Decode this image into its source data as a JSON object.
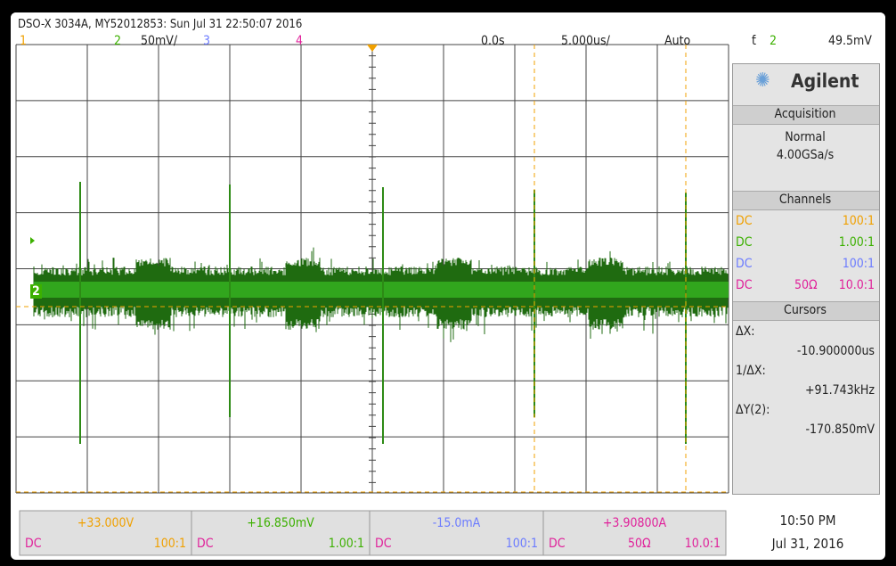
{
  "header": {
    "title": "DSO-X 3034A, MY52012853: Sun Jul 31 22:50:07 2016",
    "channels": [
      {
        "label": "1"
      },
      {
        "label": "2",
        "scale": "50mV/"
      },
      {
        "label": "3"
      },
      {
        "label": "4"
      }
    ],
    "time_offset": "0.0s",
    "time_scale": "5.000us/",
    "trigger_mode": "Auto",
    "trigger_source": "2",
    "trigger_level": "49.5mV"
  },
  "sidebar": {
    "brand": "Agilent",
    "acquisition": {
      "title": "Acquisition",
      "mode": "Normal",
      "rate": "4.00GSa/s"
    },
    "channels": {
      "title": "Channels",
      "rows": [
        {
          "coupling": "DC",
          "probe": "100:1"
        },
        {
          "coupling": "DC",
          "probe": "1.00:1"
        },
        {
          "coupling": "DC",
          "probe": "100:1"
        },
        {
          "coupling": "DC",
          "impedance": "50Ω",
          "probe": "10.0:1"
        }
      ]
    },
    "cursors": {
      "title": "Cursors",
      "items": [
        {
          "label": "ΔX:",
          "value": "-10.900000us"
        },
        {
          "label": "1/ΔX:",
          "value": "+91.743kHz"
        },
        {
          "label": "ΔY(2):",
          "value": "-170.850mV"
        }
      ]
    }
  },
  "footer": {
    "measurements": [
      {
        "value": "+33.000V",
        "coupling": "DC",
        "probe": "100:1"
      },
      {
        "value": "+16.850mV",
        "coupling": "DC",
        "probe": "1.00:1"
      },
      {
        "value": "-15.0mA",
        "coupling": "DC",
        "probe": "100:1"
      },
      {
        "value": "+3.90800A",
        "coupling": "DC",
        "impedance": "50Ω",
        "probe": "10.0:1"
      }
    ],
    "time": "10:50 PM",
    "date": "Jul 31, 2016"
  }
}
